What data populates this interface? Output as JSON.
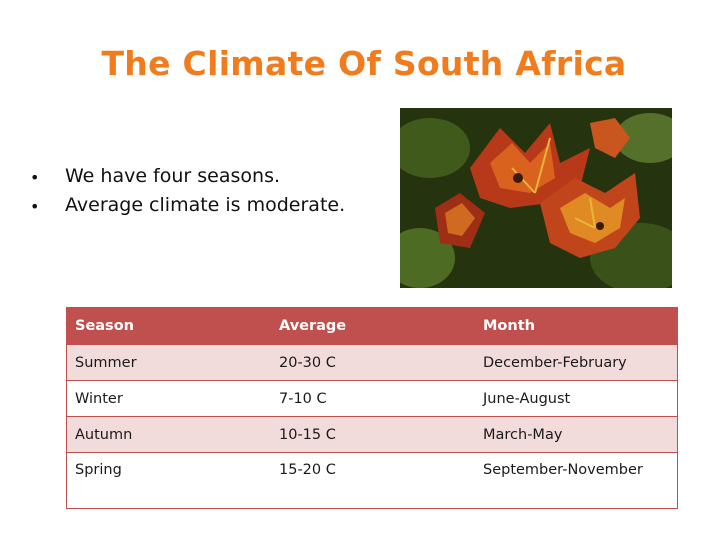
{
  "slide": {
    "title": "The Climate Of South Africa",
    "bullets": [
      "We have four seasons.",
      "Average climate is moderate."
    ]
  },
  "photo": {
    "subject": "autumn leaves"
  },
  "table": {
    "headers": [
      "Season",
      "Average",
      "Month"
    ],
    "rows": [
      [
        "Summer",
        "20-30 C",
        "December-February"
      ],
      [
        "Winter",
        "7-10 C",
        "June-August"
      ],
      [
        "Autumn",
        "10-15 C",
        "March-May"
      ],
      [
        "Spring",
        "15-20 C",
        "September-November"
      ]
    ]
  },
  "colors": {
    "title": "#f07c1d",
    "table_header": "#c0504d",
    "table_band": "#f2dcdb"
  }
}
